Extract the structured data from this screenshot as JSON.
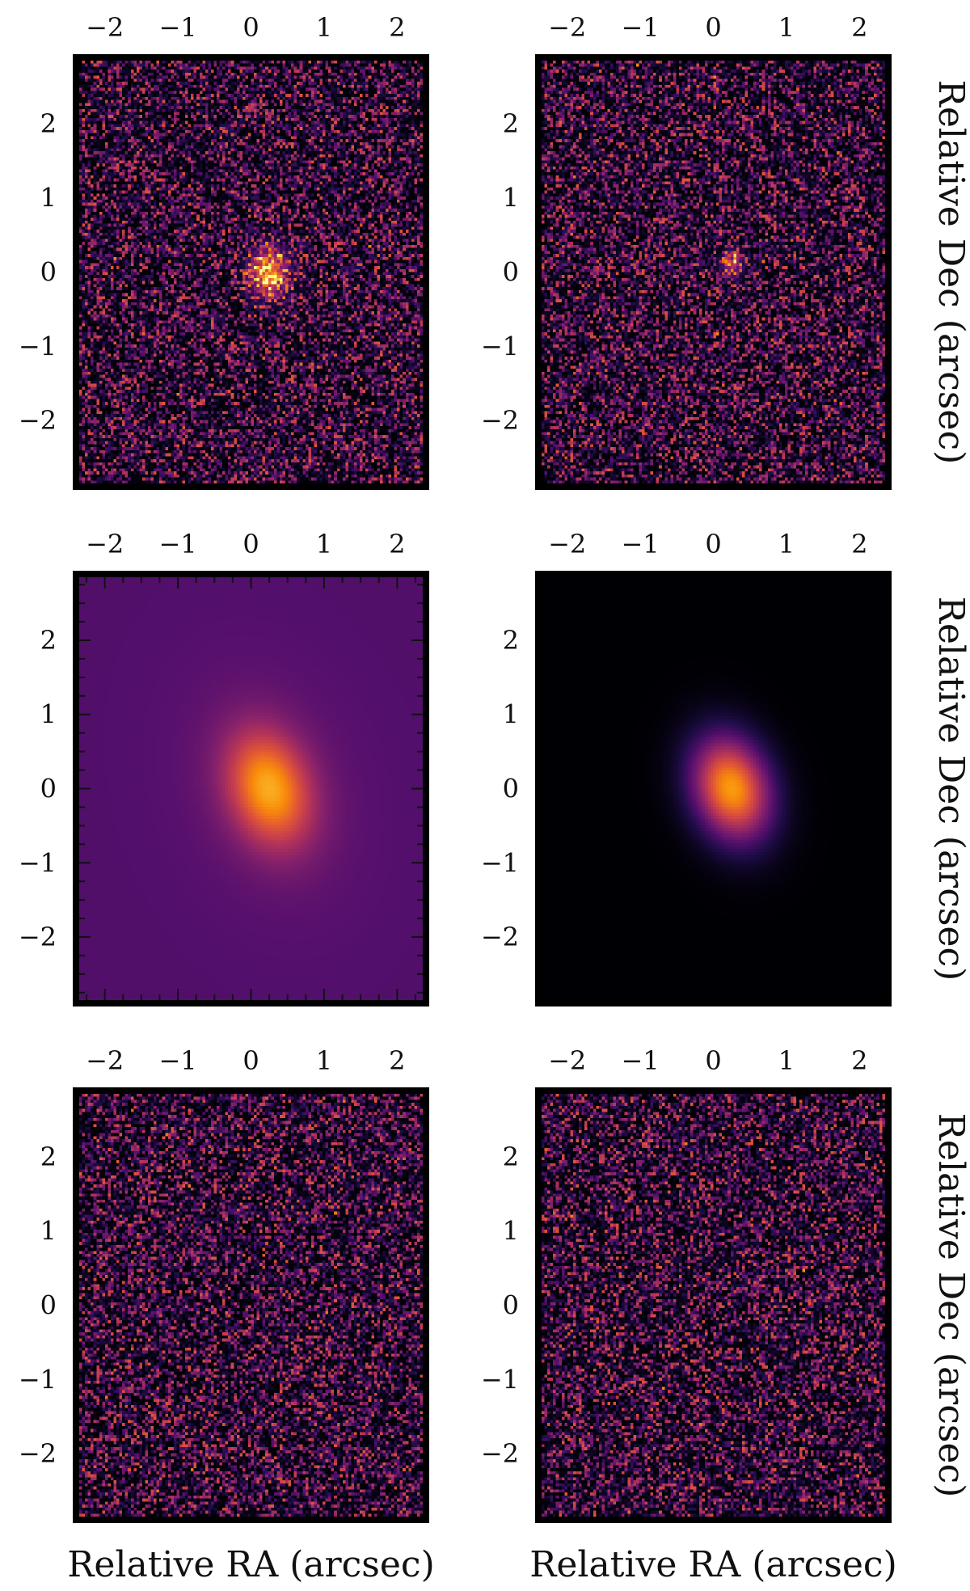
{
  "chart_data": [
    {
      "type": "heatmap",
      "panel": "row1-left",
      "rendering": "noisy-data",
      "source": {
        "x": 0.25,
        "y": 0.0,
        "sigma_major": 0.22,
        "sigma_minor": 0.18,
        "strength": 0.9
      },
      "colormap": "inferno",
      "xlim": [
        -2.35,
        2.35
      ],
      "ylim": [
        -2.85,
        2.85
      ],
      "xticks": [
        -2,
        -1,
        0,
        1,
        2
      ],
      "xtick_labels": [
        "−2",
        "−1",
        "0",
        "1",
        "2"
      ],
      "yticks": [
        2,
        1,
        0,
        -1,
        -2
      ],
      "ytick_labels": [
        "2",
        "1",
        "0",
        "−1",
        "−2"
      ]
    },
    {
      "type": "heatmap",
      "panel": "row1-right",
      "rendering": "noisy-data",
      "source": {
        "x": 0.25,
        "y": 0.1,
        "sigma_major": 0.12,
        "sigma_minor": 0.1,
        "strength": 0.55
      },
      "colormap": "inferno",
      "xlim": [
        -2.35,
        2.35
      ],
      "ylim": [
        -2.85,
        2.85
      ],
      "xticks": [
        -2,
        -1,
        0,
        1,
        2
      ],
      "xtick_labels": [
        "−2",
        "−1",
        "0",
        "1",
        "2"
      ],
      "yticks": [
        2,
        1,
        0,
        -1,
        -2
      ],
      "ytick_labels": [
        "2",
        "1",
        "0",
        "−1",
        "−2"
      ],
      "ylabel_right": "Relative Dec (arcsec)"
    },
    {
      "type": "heatmap",
      "panel": "row2-left",
      "rendering": "smooth-model",
      "source": {
        "x": 0.25,
        "y": 0.0,
        "sigma_major": 0.55,
        "sigma_minor": 0.38,
        "angle_deg": 18
      },
      "background_color": "#5a1a80",
      "colormap": "inferno",
      "xlim": [
        -2.35,
        2.35
      ],
      "ylim": [
        -2.85,
        2.85
      ],
      "xticks": [
        -2,
        -1,
        0,
        1,
        2
      ],
      "xtick_labels": [
        "−2",
        "−1",
        "0",
        "1",
        "2"
      ],
      "yticks": [
        2,
        1,
        0,
        -1,
        -2
      ],
      "ytick_labels": [
        "2",
        "1",
        "0",
        "−1",
        "−2"
      ]
    },
    {
      "type": "heatmap",
      "panel": "row2-right",
      "rendering": "smooth-model",
      "source": {
        "x": 0.25,
        "y": 0.0,
        "sigma_major": 0.5,
        "sigma_minor": 0.36,
        "angle_deg": 18
      },
      "background_color": "#000004",
      "colormap": "inferno",
      "xlim": [
        -2.35,
        2.35
      ],
      "ylim": [
        -2.85,
        2.85
      ],
      "xticks": [
        -2,
        -1,
        0,
        1,
        2
      ],
      "xtick_labels": [
        "−2",
        "−1",
        "0",
        "1",
        "2"
      ],
      "yticks": [
        2,
        1,
        0,
        -1,
        -2
      ],
      "ytick_labels": [
        "2",
        "1",
        "0",
        "−1",
        "−2"
      ],
      "ylabel_right": "Relative Dec (arcsec)"
    },
    {
      "type": "heatmap",
      "panel": "row3-left",
      "rendering": "noisy-residual",
      "colormap": "inferno",
      "xlim": [
        -2.35,
        2.35
      ],
      "ylim": [
        -2.85,
        2.85
      ],
      "xticks": [
        -2,
        -1,
        0,
        1,
        2
      ],
      "xtick_labels": [
        "−2",
        "−1",
        "0",
        "1",
        "2"
      ],
      "yticks": [
        2,
        1,
        0,
        -1,
        -2
      ],
      "ytick_labels": [
        "2",
        "1",
        "0",
        "−1",
        "−2"
      ],
      "xlabel": "Relative RA (arcsec)"
    },
    {
      "type": "heatmap",
      "panel": "row3-right",
      "rendering": "noisy-residual",
      "colormap": "inferno",
      "xlim": [
        -2.35,
        2.35
      ],
      "ylim": [
        -2.85,
        2.85
      ],
      "xticks": [
        -2,
        -1,
        0,
        1,
        2
      ],
      "xtick_labels": [
        "−2",
        "−1",
        "0",
        "1",
        "2"
      ],
      "yticks": [
        2,
        1,
        0,
        -1,
        -2
      ],
      "ytick_labels": [
        "2",
        "1",
        "0",
        "−1",
        "−2"
      ],
      "xlabel": "Relative RA (arcsec)",
      "ylabel_right": "Relative Dec (arcsec)"
    }
  ]
}
